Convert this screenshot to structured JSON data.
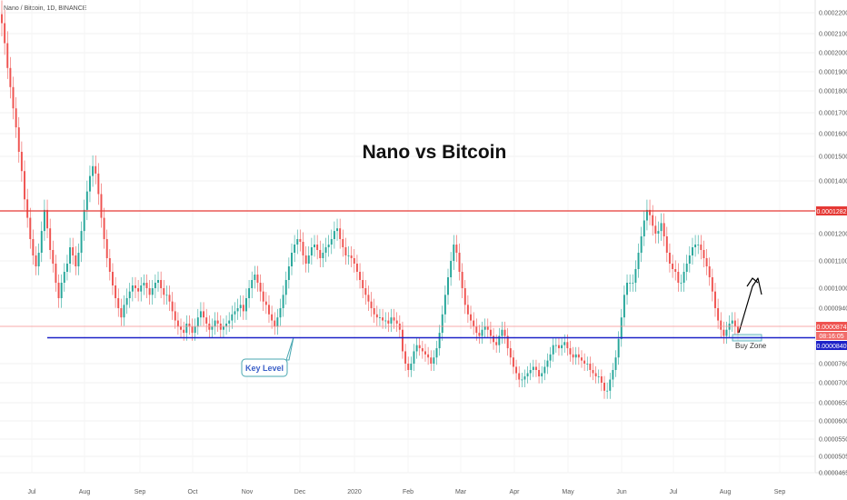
{
  "symbol_label": "Nano / Bitcoin, 1D, BINANCE",
  "chart_data": {
    "type": "candlestick",
    "title": "Nano vs Bitcoin",
    "ylim": [
      4e-05,
      0.00022
    ],
    "y_ticks": [
      "0.0002200",
      "0.0002100",
      "0.0002000",
      "0.0001900",
      "0.0001800",
      "0.0001700",
      "0.0001600",
      "0.0001500",
      "0.0001400",
      "0.0001200",
      "0.0001100",
      "0.0001000",
      "0.0000940",
      "0.0000760",
      "0.0000700",
      "0.0000650",
      "0.0000600",
      "0.0000550",
      "0.0000505",
      "0.0000465"
    ],
    "x_ticks": [
      "Jul",
      "Aug",
      "Sep",
      "Oct",
      "Nov",
      "Dec",
      "2020",
      "Feb",
      "Mar",
      "Apr",
      "May",
      "Jun",
      "Jul",
      "Aug",
      "Sep"
    ],
    "price_tags": [
      {
        "label": "0.0001282",
        "color": "#e53935"
      },
      {
        "label": "0.0000874",
        "color": "#ef5350"
      },
      {
        "label": "08:16:05",
        "color": "#ef5350"
      },
      {
        "label": "0.0000840",
        "color": "#1e22c8"
      }
    ],
    "annotations": {
      "key_level": "Key Level",
      "buy_zone": "Buy Zone"
    },
    "series": [
      {
        "close": [
          0.000215,
          0.000205,
          0.000192,
          0.000182,
          0.000172,
          0.000163,
          0.000152,
          0.000144,
          0.000133,
          0.000126,
          0.000118,
          0.000112,
          0.000108,
          0.000113,
          0.000121,
          0.000129,
          0.000122,
          0.000114,
          0.000109,
          0.000102,
          9.7e-05,
          0.000102,
          0.000106,
          0.000109,
          0.000115,
          0.000112,
          0.000108,
          0.000113,
          0.000121,
          0.000129,
          0.000136,
          0.000142,
          0.000146,
          0.000143,
          0.000135,
          0.000126,
          0.000118,
          0.000111,
          0.000106,
          0.000101,
          9.7e-05,
          9.4e-05,
          9.1e-05,
          9.5e-05,
          9.7e-05,
          9.9e-05,
          0.000101,
          0.0001,
          9.9e-05,
          0.000101,
          0.000102,
          0.0001,
          9.8e-05,
          0.0001,
          0.000102,
          0.000103,
          0.0001,
          9.8e-05,
          9.8e-05,
          9.6e-05,
          9.3e-05,
          9e-05,
          8.8e-05,
          8.7e-05,
          8.6e-05,
          8.9e-05,
          8.8e-05,
          8.6e-05,
          8.8e-05,
          9.1e-05,
          9.3e-05,
          9.1e-05,
          8.9e-05,
          8.7e-05,
          8.8e-05,
          9e-05,
          8.9e-05,
          8.7e-05,
          8.8e-05,
          8.9e-05,
          9e-05,
          9.2e-05,
          9.3e-05,
          9.4e-05,
          9.5e-05,
          9.3e-05,
          9.7e-05,
          0.0001,
          0.000103,
          0.000105,
          0.000102,
          9.9e-05,
          9.6e-05,
          9.5e-05,
          9.2e-05,
          9e-05,
          8.8e-05,
          9.1e-05,
          9.4e-05,
          9.8e-05,
          0.000103,
          0.000108,
          0.000113,
          0.000116,
          0.000118,
          0.000117,
          0.000112,
          0.000109,
          0.000112,
          0.000115,
          0.000116,
          0.000114,
          0.000111,
          0.000113,
          0.000115,
          0.000116,
          0.000118,
          0.000121,
          0.000122,
          0.000118,
          0.000115,
          0.000112,
          0.000112,
          0.000111,
          0.000109,
          0.000106,
          0.000103,
          0.0001,
          9.8e-05,
          9.6e-05,
          9.4e-05,
          9.2e-05,
          9.1e-05,
          9.1e-05,
          9e-05,
          9e-05,
          8.9e-05,
          9.1e-05,
          9e-05,
          8.9e-05,
          8.7e-05,
          8e-05,
          7.6e-05,
          7.4e-05,
          7.6e-05,
          8e-05,
          8.2e-05,
          8.1e-05,
          8e-05,
          7.9e-05,
          7.8e-05,
          7.6e-05,
          7.8e-05,
          8.1e-05,
          8.6e-05,
          9.2e-05,
          9.8e-05,
          0.000104,
          0.00011,
          0.000116,
          0.000113,
          0.000106,
          0.0001,
          9.5e-05,
          9.2e-05,
          9e-05,
          8.8e-05,
          8.6e-05,
          8.5e-05,
          8.7e-05,
          8.8e-05,
          8.7e-05,
          8.5e-05,
          8.3e-05,
          8.2e-05,
          8.5e-05,
          8.7e-05,
          8.5e-05,
          8.1e-05,
          7.8e-05,
          7.5e-05,
          7.3e-05,
          7.1e-05,
          7.1e-05,
          7.2e-05,
          7.3e-05,
          7.4e-05,
          7.5e-05,
          7.4e-05,
          7.2e-05,
          7.3e-05,
          7.5e-05,
          7.7e-05,
          7.9e-05,
          8.2e-05,
          8.2e-05,
          8.1e-05,
          8.2e-05,
          8.3e-05,
          8.1e-05,
          7.9e-05,
          7.8e-05,
          7.9e-05,
          7.8e-05,
          7.7e-05,
          7.6e-05,
          7.6e-05,
          7.4e-05,
          7.3e-05,
          7.2e-05,
          7.2e-05,
          7e-05,
          6.8e-05,
          6.8e-05,
          7.1e-05,
          7.4e-05,
          7.8e-05,
          8.4e-05,
          9.1e-05,
          9.8e-05,
          0.000102,
          0.000102,
          0.000102,
          0.000107,
          0.000113,
          0.000119,
          0.000125,
          0.000129,
          0.000127,
          0.000123,
          0.00012,
          0.000121,
          0.000124,
          0.000119,
          0.000113,
          0.000109,
          0.000107,
          0.000106,
          0.000102,
          0.000102,
          0.000106,
          0.000109,
          0.000112,
          0.000115,
          0.000116,
          0.000116,
          0.000114,
          0.000111,
          0.000108,
          0.000104,
          9.9e-05,
          9.4e-05,
          9e-05,
          8.7e-05,
          8.5e-05,
          8.7e-05,
          8.9e-05,
          9e-05,
          8.8e-05,
          8.6e-05
        ]
      }
    ]
  }
}
